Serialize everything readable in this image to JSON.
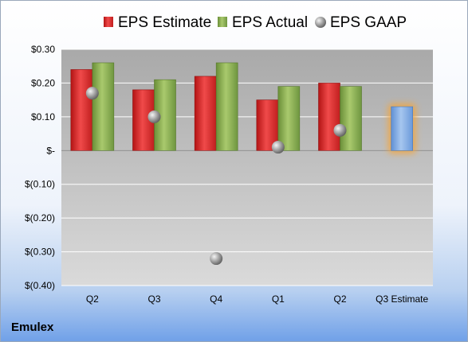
{
  "company": "Emulex",
  "chart_data": {
    "type": "bar",
    "categories": [
      "Q2",
      "Q3",
      "Q4",
      "Q1",
      "Q2",
      "Q3 Estimate"
    ],
    "series": [
      {
        "name": "EPS Estimate",
        "values": [
          0.24,
          0.18,
          0.22,
          0.15,
          0.2,
          null
        ]
      },
      {
        "name": "EPS Actual",
        "values": [
          0.26,
          0.21,
          0.26,
          0.19,
          0.19,
          null
        ]
      },
      {
        "name": "EPS GAAP",
        "values": [
          0.17,
          0.1,
          -0.32,
          0.01,
          0.06,
          null
        ]
      }
    ],
    "forecast": {
      "category": "Q3 Estimate",
      "value": 0.13
    },
    "ylim": [
      -0.4,
      0.3
    ],
    "yticks": [
      {
        "value": 0.3,
        "label": "$0.30"
      },
      {
        "value": 0.2,
        "label": "$0.20"
      },
      {
        "value": 0.1,
        "label": "$0.10"
      },
      {
        "value": 0.0,
        "label": "$-"
      },
      {
        "value": -0.1,
        "label": "$(0.10)"
      },
      {
        "value": -0.2,
        "label": "$(0.20)"
      },
      {
        "value": -0.3,
        "label": "$(0.30)"
      },
      {
        "value": -0.4,
        "label": "$(0.40)"
      }
    ],
    "grid": true,
    "legend_position": "top",
    "colors": {
      "estimate": "#d42a2a",
      "actual": "#7fa24a",
      "gaap": "#9a9a9a",
      "forecast": "#79a6df",
      "forecast_glow": "#f2a640",
      "plot_background": "#b9b9b9"
    }
  }
}
